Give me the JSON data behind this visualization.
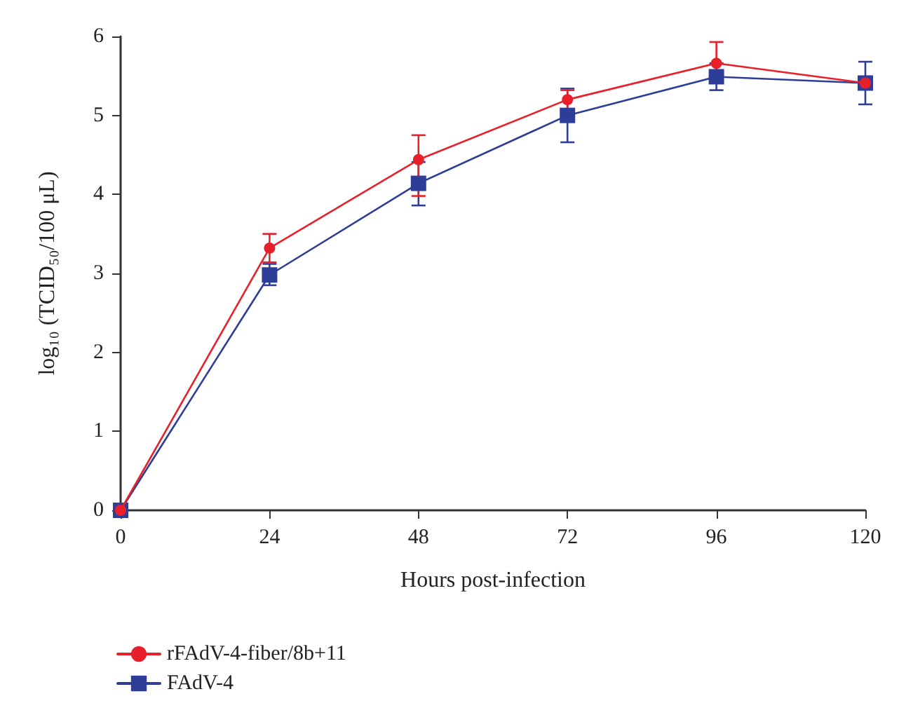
{
  "chart_data": {
    "type": "line",
    "xlabel": "Hours post-infection",
    "ylabel": "log₁₀ (TCID₅₀/100 μL)",
    "x": [
      0,
      24,
      48,
      72,
      96,
      120
    ],
    "xlim": [
      0,
      120
    ],
    "xticks": [
      0,
      24,
      48,
      72,
      96,
      120
    ],
    "ylim": [
      0,
      6
    ],
    "yticks": [
      0,
      1,
      2,
      3,
      4,
      5,
      6
    ],
    "grid": false,
    "legend": "bottom left",
    "line_style": "solid",
    "series": [
      {
        "name": "rFAdV-4-fiber/8b+11",
        "color": "#e8202a",
        "marker": "circle",
        "values": [
          0,
          3.32,
          4.44,
          5.2,
          5.66,
          5.41
        ],
        "errors": [
          null,
          0.18,
          [
            3.98,
            4.75
          ],
          [
            5.07,
            5.32
          ],
          [
            5.42,
            5.93
          ],
          null
        ]
      },
      {
        "name": "FAdV-4",
        "color": "#2e3d98",
        "marker": "square",
        "values": [
          0,
          2.98,
          4.14,
          5.0,
          5.49,
          5.41
        ],
        "errors": [
          null,
          [
            2.85,
            3.12
          ],
          [
            3.86,
            4.41
          ],
          0.34,
          0.17,
          [
            5.14,
            5.68
          ]
        ]
      }
    ]
  }
}
